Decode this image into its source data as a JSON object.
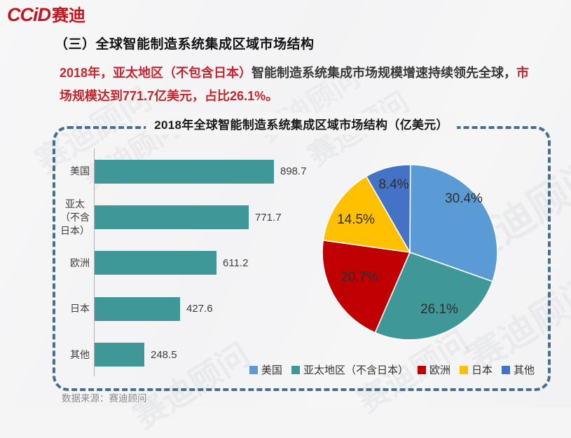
{
  "logo": {
    "latin": "CCiD",
    "cn": "赛迪",
    "color": "#C3161C"
  },
  "section_title": "（三）全球智能制造系统集成区域市场结构",
  "paragraph": {
    "seg1_red": "2018年，亚太地区（不包含日本）",
    "seg2_dark": "智能制造系统集成市场规模增速持续领先全球，",
    "seg3_red": "市场规模达到771.7亿美元，占比26.1%。",
    "red_color": "#C2272D"
  },
  "panel": {
    "title": "2018年全球智能制造系统集成区域市场结构（亿美元）",
    "border_color": "#44708F"
  },
  "chart_data": [
    {
      "type": "bar",
      "orientation": "horizontal",
      "title": "2018年全球智能制造系统集成区域市场结构（亿美元）",
      "unit": "亿美元",
      "categories": [
        "美国",
        "亚太（不含日本）",
        "欧洲",
        "日本",
        "其他"
      ],
      "categories_display": [
        "美国",
        "亚太\n（不含\n日本）",
        "欧洲",
        "日本",
        "其他"
      ],
      "values": [
        898.7,
        771.7,
        611.2,
        427.6,
        248.5
      ],
      "data_labels": [
        "898.7",
        "771.7",
        "611.2",
        "427.6",
        "248.5"
      ],
      "bar_color": "#3F9798",
      "xlim": [
        0,
        1000
      ],
      "grid": false
    },
    {
      "type": "pie",
      "labels": [
        "美国",
        "亚太地区（不含日本）",
        "欧洲",
        "日本",
        "其他"
      ],
      "values_pct": [
        30.4,
        26.1,
        20.7,
        14.5,
        8.4
      ],
      "slice_labels": [
        "30.4%",
        "26.1%",
        "20.7%",
        "14.5%",
        "8.4%"
      ],
      "colors": [
        "#5B9BD5",
        "#3F9798",
        "#C00000",
        "#FFC000",
        "#4472C4"
      ],
      "start_angle_deg": 0,
      "direction": "clockwise",
      "legend_position": "bottom-right"
    }
  ],
  "source": "数据来源：赛迪顾问",
  "watermark": "赛迪顾问"
}
